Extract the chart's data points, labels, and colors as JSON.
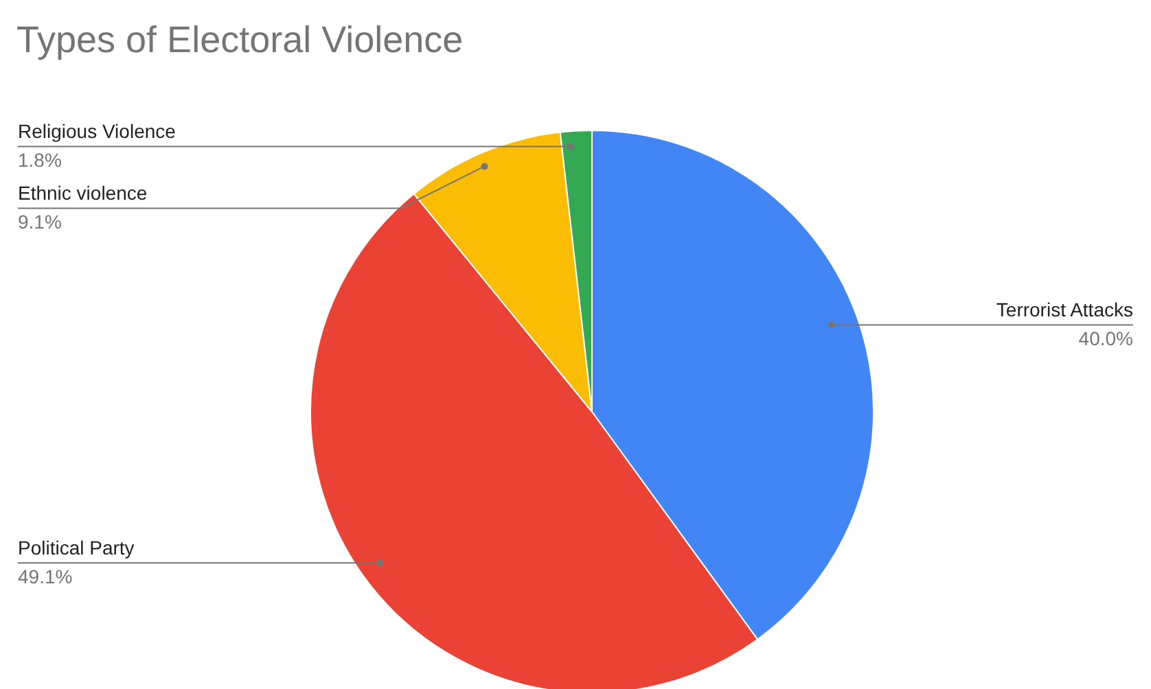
{
  "chart_data": {
    "type": "pie",
    "title": "Types of Electoral Violence",
    "categories": [
      "Terrorist Attacks",
      "Political Party",
      "Ethnic violence",
      "Religious Violence"
    ],
    "values": [
      40.0,
      49.1,
      9.1,
      1.8
    ],
    "colors": [
      "#4285f4",
      "#ea4335",
      "#fbbc04",
      "#34a853"
    ],
    "value_labels": [
      "40.0%",
      "49.1%",
      "9.1%",
      "1.8%"
    ],
    "legend": false
  }
}
